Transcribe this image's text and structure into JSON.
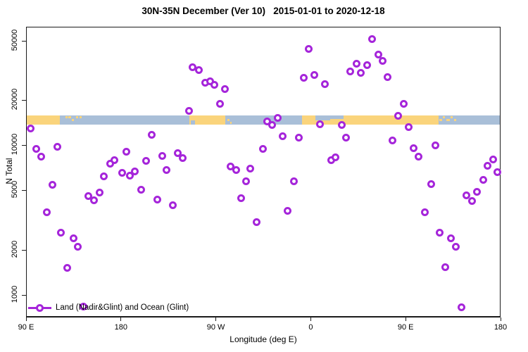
{
  "title": "30N-35N December (Ver 10)   2015-01-01 to 2020-12-18",
  "axes": {
    "y_label": "N Total",
    "x_label": "Longitude (deg E)",
    "y_ticks": [
      {
        "n": 1000,
        "label": "1000"
      },
      {
        "n": 2000,
        "label": "2000"
      },
      {
        "n": 5000,
        "label": "5000"
      },
      {
        "n": 10000,
        "label": "10000"
      },
      {
        "n": 20000,
        "label": "20000"
      },
      {
        "n": 50000,
        "label": "50000"
      }
    ],
    "x_ticks": [
      {
        "lon": 90,
        "label": "90 E"
      },
      {
        "lon": 180,
        "label": "180"
      },
      {
        "lon": 270,
        "label": "90 W"
      },
      {
        "lon": 360,
        "label": "0"
      },
      {
        "lon": 450,
        "label": "90 E"
      },
      {
        "lon": 540,
        "label": "180"
      }
    ]
  },
  "legend": {
    "label": "Land (Nadir&Glint) and Ocean (Glint)"
  },
  "colors": {
    "marker": "#A525DA",
    "land": "#FAD47C",
    "ocean": "#A9BFD8",
    "axis": "#1a1a1a"
  },
  "map_band": {
    "description": "land/ocean strip for 30N-35N latitude band",
    "n_center": 15500,
    "segments": [
      {
        "from": 90,
        "to": 121.5,
        "type": "land"
      },
      {
        "from": 121.5,
        "to": 244.2,
        "type": "ocean"
      },
      {
        "from": 244.2,
        "to": 278.3,
        "type": "land"
      },
      {
        "from": 278.3,
        "to": 351.1,
        "type": "ocean"
      },
      {
        "from": 351.1,
        "to": 480.7,
        "type": "land"
      },
      {
        "from": 480.7,
        "to": 540,
        "type": "ocean"
      }
    ],
    "details": [
      {
        "lon": 363.5,
        "w": 14,
        "type": "ocean",
        "pos": "top"
      },
      {
        "lon": 377.5,
        "w": 13,
        "type": "ocean",
        "pos": "top-thin"
      },
      {
        "lon": 245.3,
        "w": 4,
        "type": "ocean",
        "pos": "bottom"
      },
      {
        "lon": 126.5,
        "w": 2,
        "type": "land",
        "pos": "top-dot"
      },
      {
        "lon": 129.5,
        "w": 2.5,
        "type": "land",
        "pos": "top-dot"
      },
      {
        "lon": 133,
        "w": 2,
        "type": "land",
        "pos": "mid-dot"
      },
      {
        "lon": 136.5,
        "w": 2.5,
        "type": "land",
        "pos": "top-dot"
      },
      {
        "lon": 140,
        "w": 2,
        "type": "land",
        "pos": "top-dot"
      },
      {
        "lon": 481.5,
        "w": 2.5,
        "type": "land",
        "pos": "mid-dot"
      },
      {
        "lon": 484.5,
        "w": 2,
        "type": "land",
        "pos": "top-dot"
      },
      {
        "lon": 488,
        "w": 3,
        "type": "land",
        "pos": "mid-dot"
      },
      {
        "lon": 492,
        "w": 2,
        "type": "land",
        "pos": "top-dot"
      },
      {
        "lon": 495,
        "w": 2,
        "type": "land",
        "pos": "mid-dot"
      },
      {
        "lon": 280.5,
        "w": 1.5,
        "type": "land",
        "pos": "mid-dot"
      },
      {
        "lon": 283,
        "w": 1.5,
        "type": "land",
        "pos": "bottom-dot"
      }
    ]
  },
  "chart_data": {
    "type": "scatter",
    "title": "30N-35N December (Ver 10)   2015-01-01 to 2020-12-18",
    "xlabel": "Longitude (deg E)",
    "ylabel": "N Total",
    "y_scale": "log",
    "ylim": [
      900,
      55000
    ],
    "x_convention": "longitude plotted from 90E eastward, wrapping through 180, 90W, 0, 90E to 180 (values 90..540)",
    "xlim": [
      90,
      540
    ],
    "grid": false,
    "legend_position": "bottom-left",
    "points": [
      {
        "lon": 93.5,
        "n": 13200
      },
      {
        "lon": 99.3,
        "n": 9580
      },
      {
        "lon": 103.8,
        "n": 8500
      },
      {
        "lon": 119.2,
        "n": 9860
      },
      {
        "lon": 208.8,
        "n": 11900
      },
      {
        "lon": 184.3,
        "n": 9170
      },
      {
        "lon": 232.9,
        "n": 8970
      },
      {
        "lon": 238.2,
        "n": 8350
      },
      {
        "lon": 218.4,
        "n": 8590
      },
      {
        "lon": 203.5,
        "n": 7940
      },
      {
        "lon": 172.8,
        "n": 8110
      },
      {
        "lon": 169.4,
        "n": 7630
      },
      {
        "lon": 222.2,
        "n": 6950
      },
      {
        "lon": 180.3,
        "n": 6630
      },
      {
        "lon": 187.5,
        "n": 6330
      },
      {
        "lon": 192.8,
        "n": 6820
      },
      {
        "lon": 163.4,
        "n": 6260
      },
      {
        "lon": 357.5,
        "n": 44500
      },
      {
        "lon": 247.4,
        "n": 33600
      },
      {
        "lon": 253.4,
        "n": 32400
      },
      {
        "lon": 259.1,
        "n": 26500
      },
      {
        "lon": 263.8,
        "n": 27000
      },
      {
        "lon": 268.1,
        "n": 25800
      },
      {
        "lon": 278.1,
        "n": 24000
      },
      {
        "lon": 273.1,
        "n": 19100
      },
      {
        "lon": 243.6,
        "n": 17300
      },
      {
        "lon": 327.9,
        "n": 15500
      },
      {
        "lon": 317.9,
        "n": 14600
      },
      {
        "lon": 323.0,
        "n": 13900
      },
      {
        "lon": 368.0,
        "n": 14000
      },
      {
        "lon": 333.0,
        "n": 11600
      },
      {
        "lon": 347.9,
        "n": 11400
      },
      {
        "lon": 313.7,
        "n": 9590
      },
      {
        "lon": 283.6,
        "n": 7280
      },
      {
        "lon": 288.3,
        "n": 6970
      },
      {
        "lon": 302.3,
        "n": 7120
      },
      {
        "lon": 378.6,
        "n": 8090
      },
      {
        "lon": 382.9,
        "n": 8440
      },
      {
        "lon": 352.4,
        "n": 28600
      },
      {
        "lon": 362.9,
        "n": 29800
      },
      {
        "lon": 372.6,
        "n": 26100
      },
      {
        "lon": 417.6,
        "n": 51700
      },
      {
        "lon": 423.2,
        "n": 40800
      },
      {
        "lon": 427.6,
        "n": 37300
      },
      {
        "lon": 402.5,
        "n": 35600
      },
      {
        "lon": 412.5,
        "n": 34700
      },
      {
        "lon": 396.9,
        "n": 31400
      },
      {
        "lon": 406.9,
        "n": 31000
      },
      {
        "lon": 432.1,
        "n": 29000
      },
      {
        "lon": 447.7,
        "n": 19100
      },
      {
        "lon": 442.5,
        "n": 16000
      },
      {
        "lon": 452.1,
        "n": 13400
      },
      {
        "lon": 392.5,
        "n": 11400
      },
      {
        "lon": 437.0,
        "n": 10900
      },
      {
        "lon": 457.2,
        "n": 9680
      },
      {
        "lon": 477.7,
        "n": 10100
      },
      {
        "lon": 461.4,
        "n": 8560
      },
      {
        "lon": 532.2,
        "n": 8140
      },
      {
        "lon": 527.1,
        "n": 7360
      },
      {
        "lon": 536.2,
        "n": 6680
      },
      {
        "lon": 114.2,
        "n": 5510
      },
      {
        "lon": 148.3,
        "n": 4640
      },
      {
        "lon": 153.9,
        "n": 4360
      },
      {
        "lon": 158.8,
        "n": 4900
      },
      {
        "lon": 108.9,
        "n": 3620
      },
      {
        "lon": 198.8,
        "n": 5130
      },
      {
        "lon": 213.7,
        "n": 4410
      },
      {
        "lon": 228.7,
        "n": 4050
      },
      {
        "lon": 122.5,
        "n": 2650
      },
      {
        "lon": 134.1,
        "n": 2430
      },
      {
        "lon": 138.1,
        "n": 2140
      },
      {
        "lon": 128.7,
        "n": 1540
      },
      {
        "lon": 143.9,
        "n": 845
      },
      {
        "lon": 297.8,
        "n": 5820
      },
      {
        "lon": 343.5,
        "n": 5820
      },
      {
        "lon": 293.2,
        "n": 4520
      },
      {
        "lon": 337.5,
        "n": 3710
      },
      {
        "lon": 308.3,
        "n": 3100
      },
      {
        "lon": 473.3,
        "n": 5560
      },
      {
        "lon": 522.7,
        "n": 5970
      },
      {
        "lon": 507.1,
        "n": 4720
      },
      {
        "lon": 517.1,
        "n": 4950
      },
      {
        "lon": 512.2,
        "n": 4320
      },
      {
        "lon": 467.4,
        "n": 3620
      },
      {
        "lon": 481.5,
        "n": 2650
      },
      {
        "lon": 492.2,
        "n": 2430
      },
      {
        "lon": 496.8,
        "n": 2140
      },
      {
        "lon": 487.2,
        "n": 1560
      },
      {
        "lon": 502.4,
        "n": 840
      },
      {
        "lon": 388.5,
        "n": 13800
      }
    ]
  }
}
